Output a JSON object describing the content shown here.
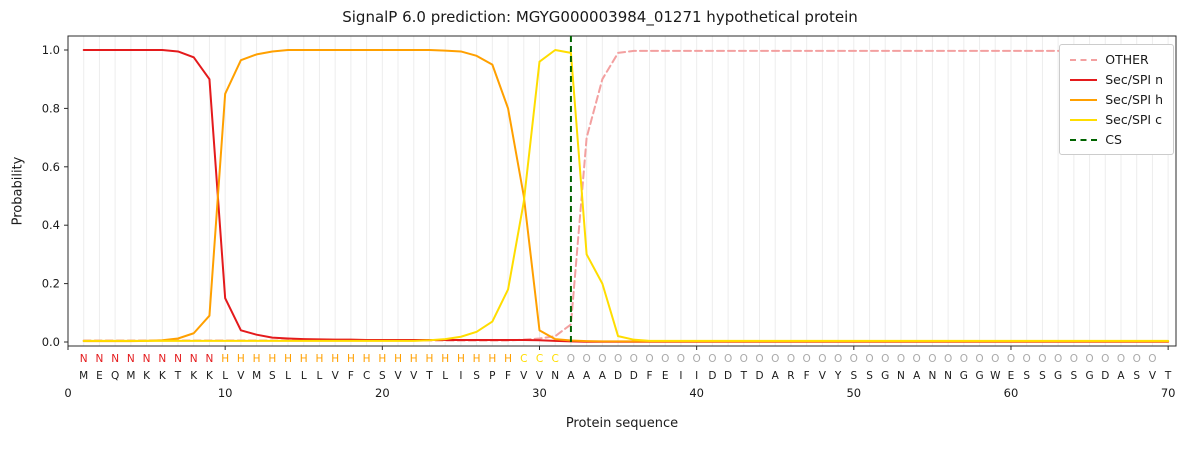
{
  "chart_data": {
    "type": "line",
    "title": "SignalP 6.0 prediction: MGYG000003984_01271 hypothetical protein",
    "xlabel": "Protein sequence",
    "ylabel": "Probability",
    "xlim": [
      0,
      70.5
    ],
    "ylim": [
      0,
      1.05
    ],
    "x_ticks": [
      0,
      10,
      20,
      30,
      40,
      50,
      60,
      70
    ],
    "y_ticks": [
      "0.0",
      "0.2",
      "0.4",
      "0.6",
      "0.8",
      "1.0"
    ],
    "grid": "vertical-per-residue",
    "legend_position": "upper right",
    "x_start": 1,
    "series": [
      {
        "name": "OTHER",
        "color": "#f3a0a0",
        "style": "dashed",
        "values": [
          0.005,
          0.005,
          0.005,
          0.005,
          0.005,
          0.005,
          0.005,
          0.005,
          0.005,
          0.005,
          0.005,
          0.005,
          0.005,
          0.005,
          0.005,
          0.005,
          0.005,
          0.005,
          0.005,
          0.005,
          0.005,
          0.005,
          0.005,
          0.005,
          0.005,
          0.005,
          0.005,
          0.005,
          0.008,
          0.012,
          0.02,
          0.06,
          0.7,
          0.9,
          0.99,
          0.997,
          0.997,
          0.997,
          0.997,
          0.997,
          0.997,
          0.997,
          0.997,
          0.997,
          0.997,
          0.997,
          0.997,
          0.997,
          0.997,
          0.997,
          0.997,
          0.997,
          0.997,
          0.997,
          0.997,
          0.997,
          0.997,
          0.997,
          0.997,
          0.997,
          0.997,
          0.997,
          0.997,
          0.997,
          0.997,
          0.997,
          0.997,
          0.997,
          0.997,
          0.997
        ]
      },
      {
        "name": "Sec/SPI n",
        "color": "#e41a1c",
        "style": "solid",
        "values": [
          1.0,
          1.0,
          1.0,
          1.0,
          1.0,
          1.0,
          0.995,
          0.975,
          0.9,
          0.15,
          0.04,
          0.025,
          0.015,
          0.012,
          0.01,
          0.009,
          0.008,
          0.008,
          0.007,
          0.007,
          0.007,
          0.007,
          0.007,
          0.007,
          0.007,
          0.007,
          0.007,
          0.007,
          0.007,
          0.006,
          0.004,
          0.002,
          0.001,
          0.001,
          0.001,
          0.001,
          0.001,
          0.001,
          0.001,
          0.001,
          0.001,
          0.001,
          0.001,
          0.001,
          0.001,
          0.001,
          0.001,
          0.001,
          0.001,
          0.001,
          0.001,
          0.001,
          0.001,
          0.001,
          0.001,
          0.001,
          0.001,
          0.001,
          0.001,
          0.001,
          0.001,
          0.001,
          0.001,
          0.001,
          0.001,
          0.001,
          0.001,
          0.001,
          0.001,
          0.001
        ]
      },
      {
        "name": "Sec/SPI h",
        "color": "#ffa000",
        "style": "solid",
        "values": [
          0.003,
          0.003,
          0.003,
          0.003,
          0.004,
          0.006,
          0.012,
          0.03,
          0.09,
          0.85,
          0.965,
          0.985,
          0.995,
          1.0,
          1.0,
          1.0,
          1.0,
          1.0,
          1.0,
          1.0,
          1.0,
          1.0,
          1.0,
          0.998,
          0.995,
          0.98,
          0.95,
          0.8,
          0.5,
          0.04,
          0.01,
          0.005,
          0.003,
          0.002,
          0.002,
          0.002,
          0.002,
          0.002,
          0.002,
          0.002,
          0.002,
          0.002,
          0.002,
          0.002,
          0.002,
          0.002,
          0.002,
          0.002,
          0.002,
          0.002,
          0.002,
          0.002,
          0.002,
          0.002,
          0.002,
          0.002,
          0.002,
          0.002,
          0.002,
          0.002,
          0.002,
          0.002,
          0.002,
          0.002,
          0.002,
          0.002,
          0.002,
          0.002,
          0.002,
          0.002
        ]
      },
      {
        "name": "Sec/SPI c",
        "color": "#ffdd00",
        "style": "solid",
        "values": [
          0.004,
          0.004,
          0.004,
          0.004,
          0.004,
          0.004,
          0.004,
          0.004,
          0.004,
          0.004,
          0.004,
          0.004,
          0.004,
          0.004,
          0.004,
          0.004,
          0.004,
          0.004,
          0.004,
          0.004,
          0.004,
          0.004,
          0.006,
          0.01,
          0.018,
          0.035,
          0.07,
          0.18,
          0.48,
          0.96,
          1.0,
          0.99,
          0.3,
          0.2,
          0.02,
          0.008,
          0.004,
          0.004,
          0.004,
          0.004,
          0.004,
          0.004,
          0.004,
          0.004,
          0.004,
          0.004,
          0.004,
          0.004,
          0.004,
          0.004,
          0.004,
          0.004,
          0.004,
          0.004,
          0.004,
          0.004,
          0.004,
          0.004,
          0.004,
          0.004,
          0.004,
          0.004,
          0.004,
          0.004,
          0.004,
          0.004,
          0.004,
          0.004,
          0.004,
          0.004
        ]
      }
    ],
    "cs_line": {
      "name": "CS",
      "position": 32,
      "color": "#006400",
      "style": "dashed"
    },
    "sequence": "MEQMKKTKKLVMSLLLVFCSVVTLISPFVVNAAADDFEIIDDTDARFVYSSGNANNGGWESSGSGDASVT",
    "region_labels": "NNNNNNNNNHHHHHHHHHHHHHHHHHHHCCCOOOOOOOOOOOOOOOOOOOOOOOOOOOOOOOOOOOOOO",
    "region_colors": {
      "N": "#e41a1c",
      "H": "#ffa000",
      "C": "#ffdd00",
      "O": "#aaaaaa"
    }
  }
}
